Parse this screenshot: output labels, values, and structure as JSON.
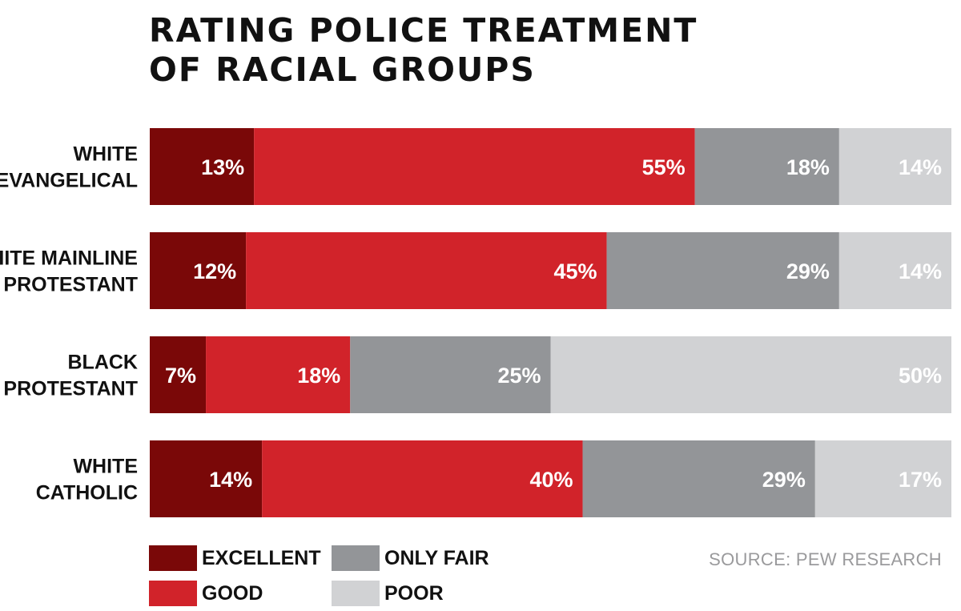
{
  "chart_data": {
    "type": "bar",
    "orientation": "horizontal",
    "stacked": true,
    "title_lines": [
      "RATING POLICE TREATMENT",
      "OF RACIAL GROUPS"
    ],
    "categories": [
      [
        "WHITE",
        "EVANGELICAL"
      ],
      [
        "WHITE MAINLINE",
        "PROTESTANT"
      ],
      [
        "BLACK",
        "PROTESTANT"
      ],
      [
        "WHITE",
        "CATHOLIC"
      ]
    ],
    "series": [
      {
        "name": "EXCELLENT",
        "color": "#7a0808",
        "values": [
          13,
          12,
          7,
          14
        ]
      },
      {
        "name": "GOOD",
        "color": "#d1232a",
        "values": [
          55,
          45,
          18,
          40
        ]
      },
      {
        "name": "ONLY FAIR",
        "color": "#939598",
        "values": [
          18,
          29,
          25,
          29
        ]
      },
      {
        "name": "POOR",
        "color": "#d1d2d4",
        "values": [
          14,
          14,
          50,
          17
        ]
      }
    ],
    "value_labels": [
      [
        "13%",
        "55%",
        "18%",
        "14%"
      ],
      [
        "12%",
        "45%",
        "29%",
        "14%"
      ],
      [
        "7%",
        "18%",
        "25%",
        "50%"
      ],
      [
        "14%",
        "40%",
        "29%",
        "17%"
      ]
    ],
    "legend": {
      "placement": "bottom-left",
      "columns": 2
    },
    "grid": false,
    "source": "SOURCE: PEW RESEARCH"
  }
}
